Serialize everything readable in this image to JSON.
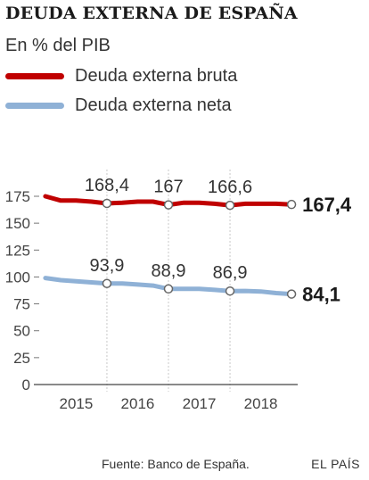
{
  "title": "DEUDA EXTERNA DE ESPAÑA",
  "subtitle": "En % del PIB",
  "legend": [
    {
      "label": "Deuda externa bruta",
      "color": "#c00000"
    },
    {
      "label": "Deuda externa neta",
      "color": "#8fb1d6"
    }
  ],
  "source": "Fuente: Banco de España.",
  "brand": "EL PAÍS",
  "chart_data": {
    "type": "line",
    "title": "DEUDA EXTERNA DE ESPAÑA",
    "subtitle": "En % del PIB",
    "xlabel": "",
    "ylabel": "",
    "ylim": [
      0,
      175
    ],
    "yticks": [
      0,
      25,
      50,
      75,
      100,
      125,
      150,
      175
    ],
    "xlim": [
      2014.4,
      2018.6
    ],
    "xticks": [
      2015,
      2016,
      2017,
      2018
    ],
    "x": [
      2014.5,
      2014.75,
      2015.0,
      2015.25,
      2015.5,
      2015.75,
      2016.0,
      2016.25,
      2016.5,
      2016.75,
      2017.0,
      2017.25,
      2017.5,
      2017.75,
      2018.0,
      2018.25,
      2018.5
    ],
    "series": [
      {
        "name": "Deuda externa bruta",
        "color": "#c00000",
        "values": [
          175,
          171,
          171,
          170,
          168.4,
          169,
          170,
          170,
          167,
          169,
          169,
          168,
          166.6,
          168,
          168,
          168,
          167.4
        ]
      },
      {
        "name": "Deuda externa neta",
        "color": "#8fb1d6",
        "values": [
          99,
          97,
          96,
          95,
          93.9,
          94,
          93,
          92,
          88.9,
          89,
          89,
          88,
          86.9,
          87,
          86.5,
          85,
          84.1
        ]
      }
    ],
    "annotations": [
      {
        "series": 0,
        "x": 2015.5,
        "label": "168,4"
      },
      {
        "series": 0,
        "x": 2016.5,
        "label": "167"
      },
      {
        "series": 0,
        "x": 2017.5,
        "label": "166,6"
      },
      {
        "series": 1,
        "x": 2015.5,
        "label": "93,9"
      },
      {
        "series": 1,
        "x": 2016.5,
        "label": "88,9"
      },
      {
        "series": 1,
        "x": 2017.5,
        "label": "86,9"
      }
    ],
    "end_labels": [
      {
        "series": 0,
        "label": "167,4"
      },
      {
        "series": 1,
        "label": "84,1"
      }
    ],
    "grid": {
      "vertical": true,
      "horizontal": false
    }
  }
}
